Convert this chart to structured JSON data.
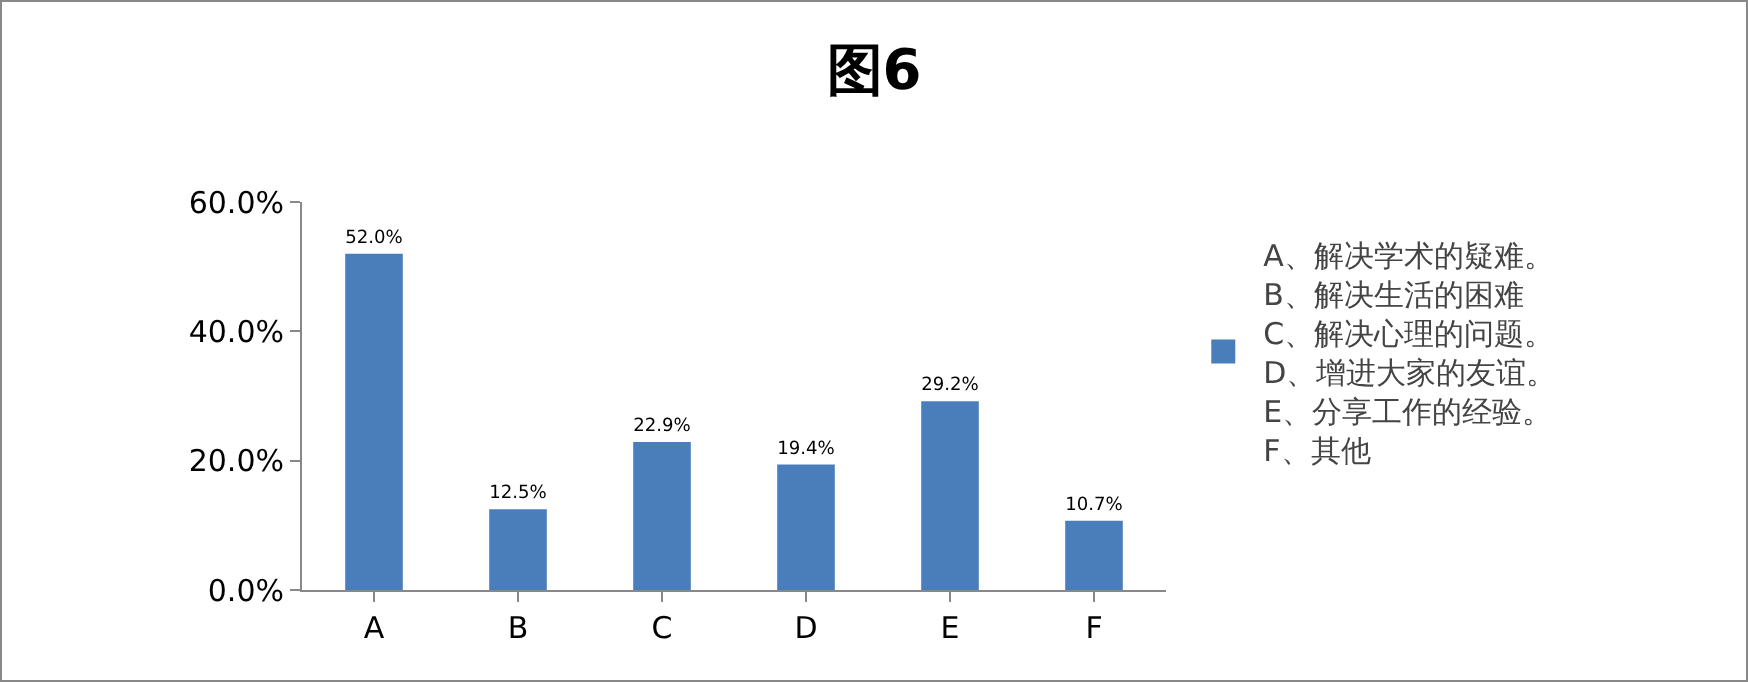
{
  "chart_data": {
    "type": "bar",
    "title": "图6",
    "categories": [
      "A",
      "B",
      "C",
      "D",
      "E",
      "F"
    ],
    "series": [
      {
        "name": "A、解决学术的疑难。\nB、解决生活的困难\nC、解决心理的问题。\nD、增进大家的友谊。\nE、分享工作的经验。\nF、其他",
        "color": "#4a7ebb",
        "values": [
          52.0,
          12.5,
          22.9,
          19.4,
          29.2,
          10.7
        ],
        "value_labels": [
          "52.0%",
          "12.5%",
          "22.9%",
          "19.4%",
          "29.2%",
          "10.7%"
        ]
      }
    ],
    "ylim": [
      0,
      60
    ],
    "yticks": [
      {
        "value": 0,
        "label": "0.0%"
      },
      {
        "value": 20,
        "label": "20.0%"
      },
      {
        "value": 40,
        "label": "40.0%"
      },
      {
        "value": 60,
        "label": "60.0%"
      }
    ],
    "grid": false,
    "legend": "right"
  }
}
